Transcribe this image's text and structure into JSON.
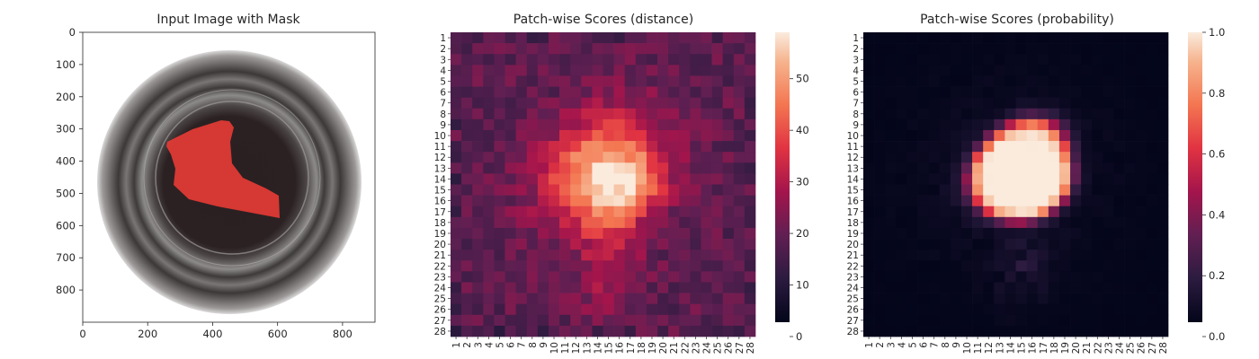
{
  "chart_data": [
    {
      "type": "image",
      "title": "Input Image with Mask",
      "xlim": [
        0,
        900
      ],
      "ylim": [
        900,
        0
      ],
      "x_ticks": [
        "0",
        "200",
        "400",
        "600",
        "800"
      ],
      "y_ticks": [
        "0",
        "100",
        "200",
        "300",
        "400",
        "500",
        "600",
        "700",
        "800"
      ],
      "colors": {
        "mask": "#e53b35",
        "bowl_rim": "#6a6665",
        "bowl_inner": "#2c2223"
      }
    },
    {
      "type": "heatmap",
      "title": "Patch-wise Scores (distance)",
      "rows": [
        "1",
        "2",
        "3",
        "4",
        "5",
        "6",
        "7",
        "8",
        "9",
        "10",
        "11",
        "12",
        "13",
        "14",
        "15",
        "16",
        "17",
        "18",
        "19",
        "20",
        "21",
        "22",
        "23",
        "24",
        "25",
        "26",
        "27",
        "28"
      ],
      "cols": [
        "1",
        "2",
        "3",
        "4",
        "5",
        "6",
        "7",
        "8",
        "9",
        "10",
        "11",
        "12",
        "13",
        "14",
        "15",
        "16",
        "17",
        "18",
        "19",
        "20",
        "21",
        "22",
        "23",
        "24",
        "25",
        "26",
        "27",
        "28"
      ],
      "colorbar": {
        "min": 0,
        "max": 59,
        "ticks": [
          "0",
          "10",
          "20",
          "30",
          "40",
          "50"
        ]
      },
      "colormap": "rocket",
      "peak_cell": {
        "row": 14,
        "col": 16,
        "value": 59
      },
      "background_level": 17
    },
    {
      "type": "heatmap",
      "title": "Patch-wise Scores (probability)",
      "rows": [
        "1",
        "2",
        "3",
        "4",
        "5",
        "6",
        "7",
        "8",
        "9",
        "10",
        "11",
        "12",
        "13",
        "14",
        "15",
        "16",
        "17",
        "18",
        "19",
        "20",
        "21",
        "22",
        "23",
        "24",
        "25",
        "26",
        "27",
        "28"
      ],
      "cols": [
        "1",
        "2",
        "3",
        "4",
        "5",
        "6",
        "7",
        "8",
        "9",
        "10",
        "11",
        "12",
        "13",
        "14",
        "15",
        "16",
        "17",
        "18",
        "19",
        "20",
        "21",
        "22",
        "23",
        "24",
        "25",
        "26",
        "27",
        "28"
      ],
      "colorbar": {
        "min": 0.0,
        "max": 1.0,
        "ticks": [
          "0.0",
          "0.2",
          "0.4",
          "0.6",
          "0.8",
          "1.0"
        ]
      },
      "colormap": "rocket",
      "peak_cell": {
        "row": 13,
        "col": 15,
        "value": 1.0
      },
      "background_level": 0.0
    }
  ]
}
